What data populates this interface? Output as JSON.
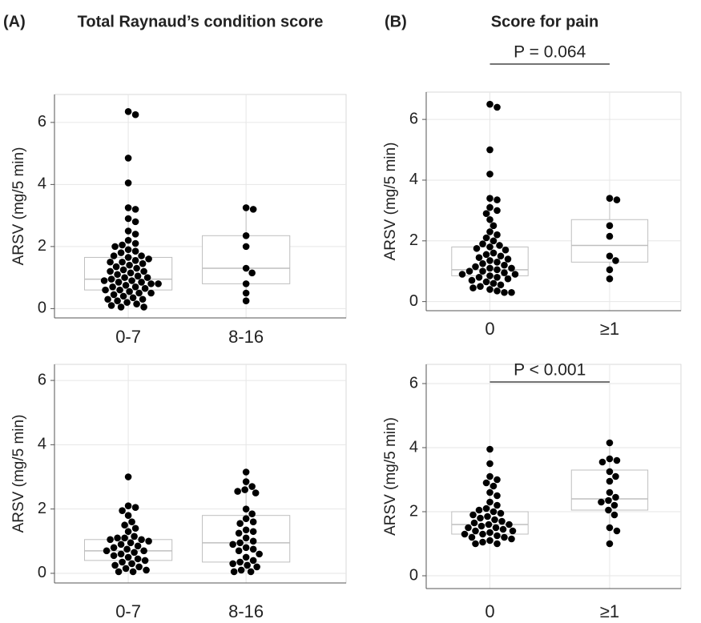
{
  "panels": [
    {
      "label": "(A)",
      "title": "Total Raynaud’s condition score"
    },
    {
      "label": "(B)",
      "title": "Score for pain"
    }
  ],
  "chart_data": [
    {
      "type": "box",
      "ylabel": "ARSV (mg/5 min)",
      "categories": [
        "0-7",
        "8-16"
      ],
      "ylim": [
        -0.3,
        6.9
      ],
      "yticks": [
        0,
        2,
        4,
        6
      ],
      "grid": true,
      "color": "#000000",
      "box_color": "#bfbfbf",
      "values": [
        [
          6.35,
          6.25,
          4.85,
          4.05,
          3.25,
          3.2,
          2.9,
          2.8,
          2.5,
          2.4,
          2.2,
          2.1,
          2.05,
          2.0,
          1.9,
          1.85,
          1.8,
          1.7,
          1.7,
          1.65,
          1.6,
          1.55,
          1.5,
          1.5,
          1.45,
          1.4,
          1.35,
          1.3,
          1.25,
          1.2,
          1.2,
          1.15,
          1.1,
          1.05,
          1.0,
          1.0,
          0.95,
          0.9,
          0.9,
          0.85,
          0.85,
          0.8,
          0.8,
          0.75,
          0.7,
          0.7,
          0.65,
          0.6,
          0.6,
          0.55,
          0.5,
          0.5,
          0.45,
          0.4,
          0.35,
          0.3,
          0.3,
          0.25,
          0.2,
          0.15,
          0.1,
          0.05,
          0.05
        ],
        [
          3.2,
          3.25,
          2.35,
          2.0,
          1.3,
          1.15,
          0.8,
          0.5,
          0.25
        ]
      ],
      "boxes": [
        {
          "whisker_low": 0.05,
          "q1": 0.6,
          "median": 0.95,
          "q3": 1.65,
          "whisker_high": 2.9
        },
        {
          "whisker_low": 0.25,
          "q1": 0.8,
          "median": 1.3,
          "q3": 2.35,
          "whisker_high": 3.25
        }
      ]
    },
    {
      "type": "box",
      "ylabel": "ARSV (mg/5 min)",
      "categories": [
        "0",
        "≥1"
      ],
      "ylim": [
        -0.3,
        6.9
      ],
      "yticks": [
        0,
        2,
        4,
        6
      ],
      "grid": true,
      "color": "#000000",
      "box_color": "#bfbfbf",
      "annotation": "P = 0.064",
      "values": [
        [
          6.5,
          6.4,
          5.0,
          4.2,
          3.4,
          3.35,
          3.1,
          3.0,
          2.9,
          2.7,
          2.5,
          2.3,
          2.2,
          2.1,
          2.0,
          1.9,
          1.85,
          1.8,
          1.75,
          1.7,
          1.6,
          1.55,
          1.5,
          1.45,
          1.4,
          1.35,
          1.3,
          1.25,
          1.2,
          1.15,
          1.1,
          1.1,
          1.05,
          1.0,
          1.0,
          0.95,
          0.9,
          0.9,
          0.85,
          0.8,
          0.8,
          0.75,
          0.7,
          0.65,
          0.6,
          0.55,
          0.5,
          0.45,
          0.4,
          0.35,
          0.3,
          0.3
        ],
        [
          3.4,
          3.35,
          2.5,
          2.15,
          1.5,
          1.35,
          1.05,
          0.75
        ]
      ],
      "boxes": [
        {
          "whisker_low": 0.3,
          "q1": 0.85,
          "median": 1.05,
          "q3": 1.8,
          "whisker_high": 3.4
        },
        {
          "whisker_low": 0.75,
          "q1": 1.3,
          "median": 1.85,
          "q3": 2.7,
          "whisker_high": 3.4
        }
      ]
    },
    {
      "type": "box",
      "ylabel": "ARSV (mg/5 min)",
      "categories": [
        "0-7",
        "8-16"
      ],
      "ylim": [
        -0.3,
        6.5
      ],
      "yticks": [
        0,
        2,
        4,
        6
      ],
      "grid": true,
      "color": "#000000",
      "box_color": "#bfbfbf",
      "values": [
        [
          3.0,
          2.1,
          2.05,
          1.95,
          1.8,
          1.6,
          1.5,
          1.4,
          1.3,
          1.15,
          1.1,
          1.1,
          1.05,
          1.05,
          1.0,
          0.95,
          0.9,
          0.85,
          0.8,
          0.75,
          0.7,
          0.7,
          0.65,
          0.6,
          0.55,
          0.5,
          0.45,
          0.4,
          0.35,
          0.3,
          0.25,
          0.2,
          0.15,
          0.1,
          0.05,
          0.05
        ],
        [
          3.15,
          2.85,
          2.7,
          2.6,
          2.55,
          2.5,
          2.0,
          1.85,
          1.7,
          1.6,
          1.55,
          1.35,
          1.3,
          1.25,
          1.1,
          1.0,
          0.95,
          0.9,
          0.8,
          0.75,
          0.7,
          0.6,
          0.5,
          0.4,
          0.35,
          0.3,
          0.25,
          0.2,
          0.1,
          0.05,
          0.05
        ]
      ],
      "boxes": [
        {
          "whisker_low": 0.05,
          "q1": 0.4,
          "median": 0.7,
          "q3": 1.05,
          "whisker_high": 1.6
        },
        {
          "whisker_low": 0.05,
          "q1": 0.35,
          "median": 0.95,
          "q3": 1.8,
          "whisker_high": 3.15
        }
      ]
    },
    {
      "type": "box",
      "ylabel": "ARSV (mg/5 min)",
      "categories": [
        "0",
        "≥1"
      ],
      "ylim": [
        -0.4,
        6.6
      ],
      "yticks": [
        0,
        2,
        4,
        6
      ],
      "grid": true,
      "color": "#000000",
      "box_color": "#bfbfbf",
      "annotation": "P < 0.001",
      "values": [
        [
          3.95,
          3.5,
          3.1,
          3.0,
          2.9,
          2.8,
          2.6,
          2.5,
          2.3,
          2.2,
          2.1,
          2.05,
          2.0,
          1.95,
          1.9,
          1.85,
          1.8,
          1.75,
          1.7,
          1.65,
          1.6,
          1.6,
          1.55,
          1.5,
          1.5,
          1.45,
          1.4,
          1.4,
          1.35,
          1.3,
          1.3,
          1.25,
          1.2,
          1.2,
          1.15,
          1.1,
          1.05,
          1.0,
          1.0
        ],
        [
          4.15,
          3.65,
          3.6,
          3.55,
          3.25,
          3.1,
          2.95,
          2.6,
          2.45,
          2.35,
          2.3,
          2.2,
          2.05,
          1.9,
          1.5,
          1.4,
          1.0
        ]
      ],
      "boxes": [
        {
          "whisker_low": 1.0,
          "q1": 1.3,
          "median": 1.6,
          "q3": 2.0,
          "whisker_high": 3.0
        },
        {
          "whisker_low": 1.0,
          "q1": 2.05,
          "median": 2.4,
          "q3": 3.3,
          "whisker_high": 4.15
        }
      ]
    }
  ]
}
